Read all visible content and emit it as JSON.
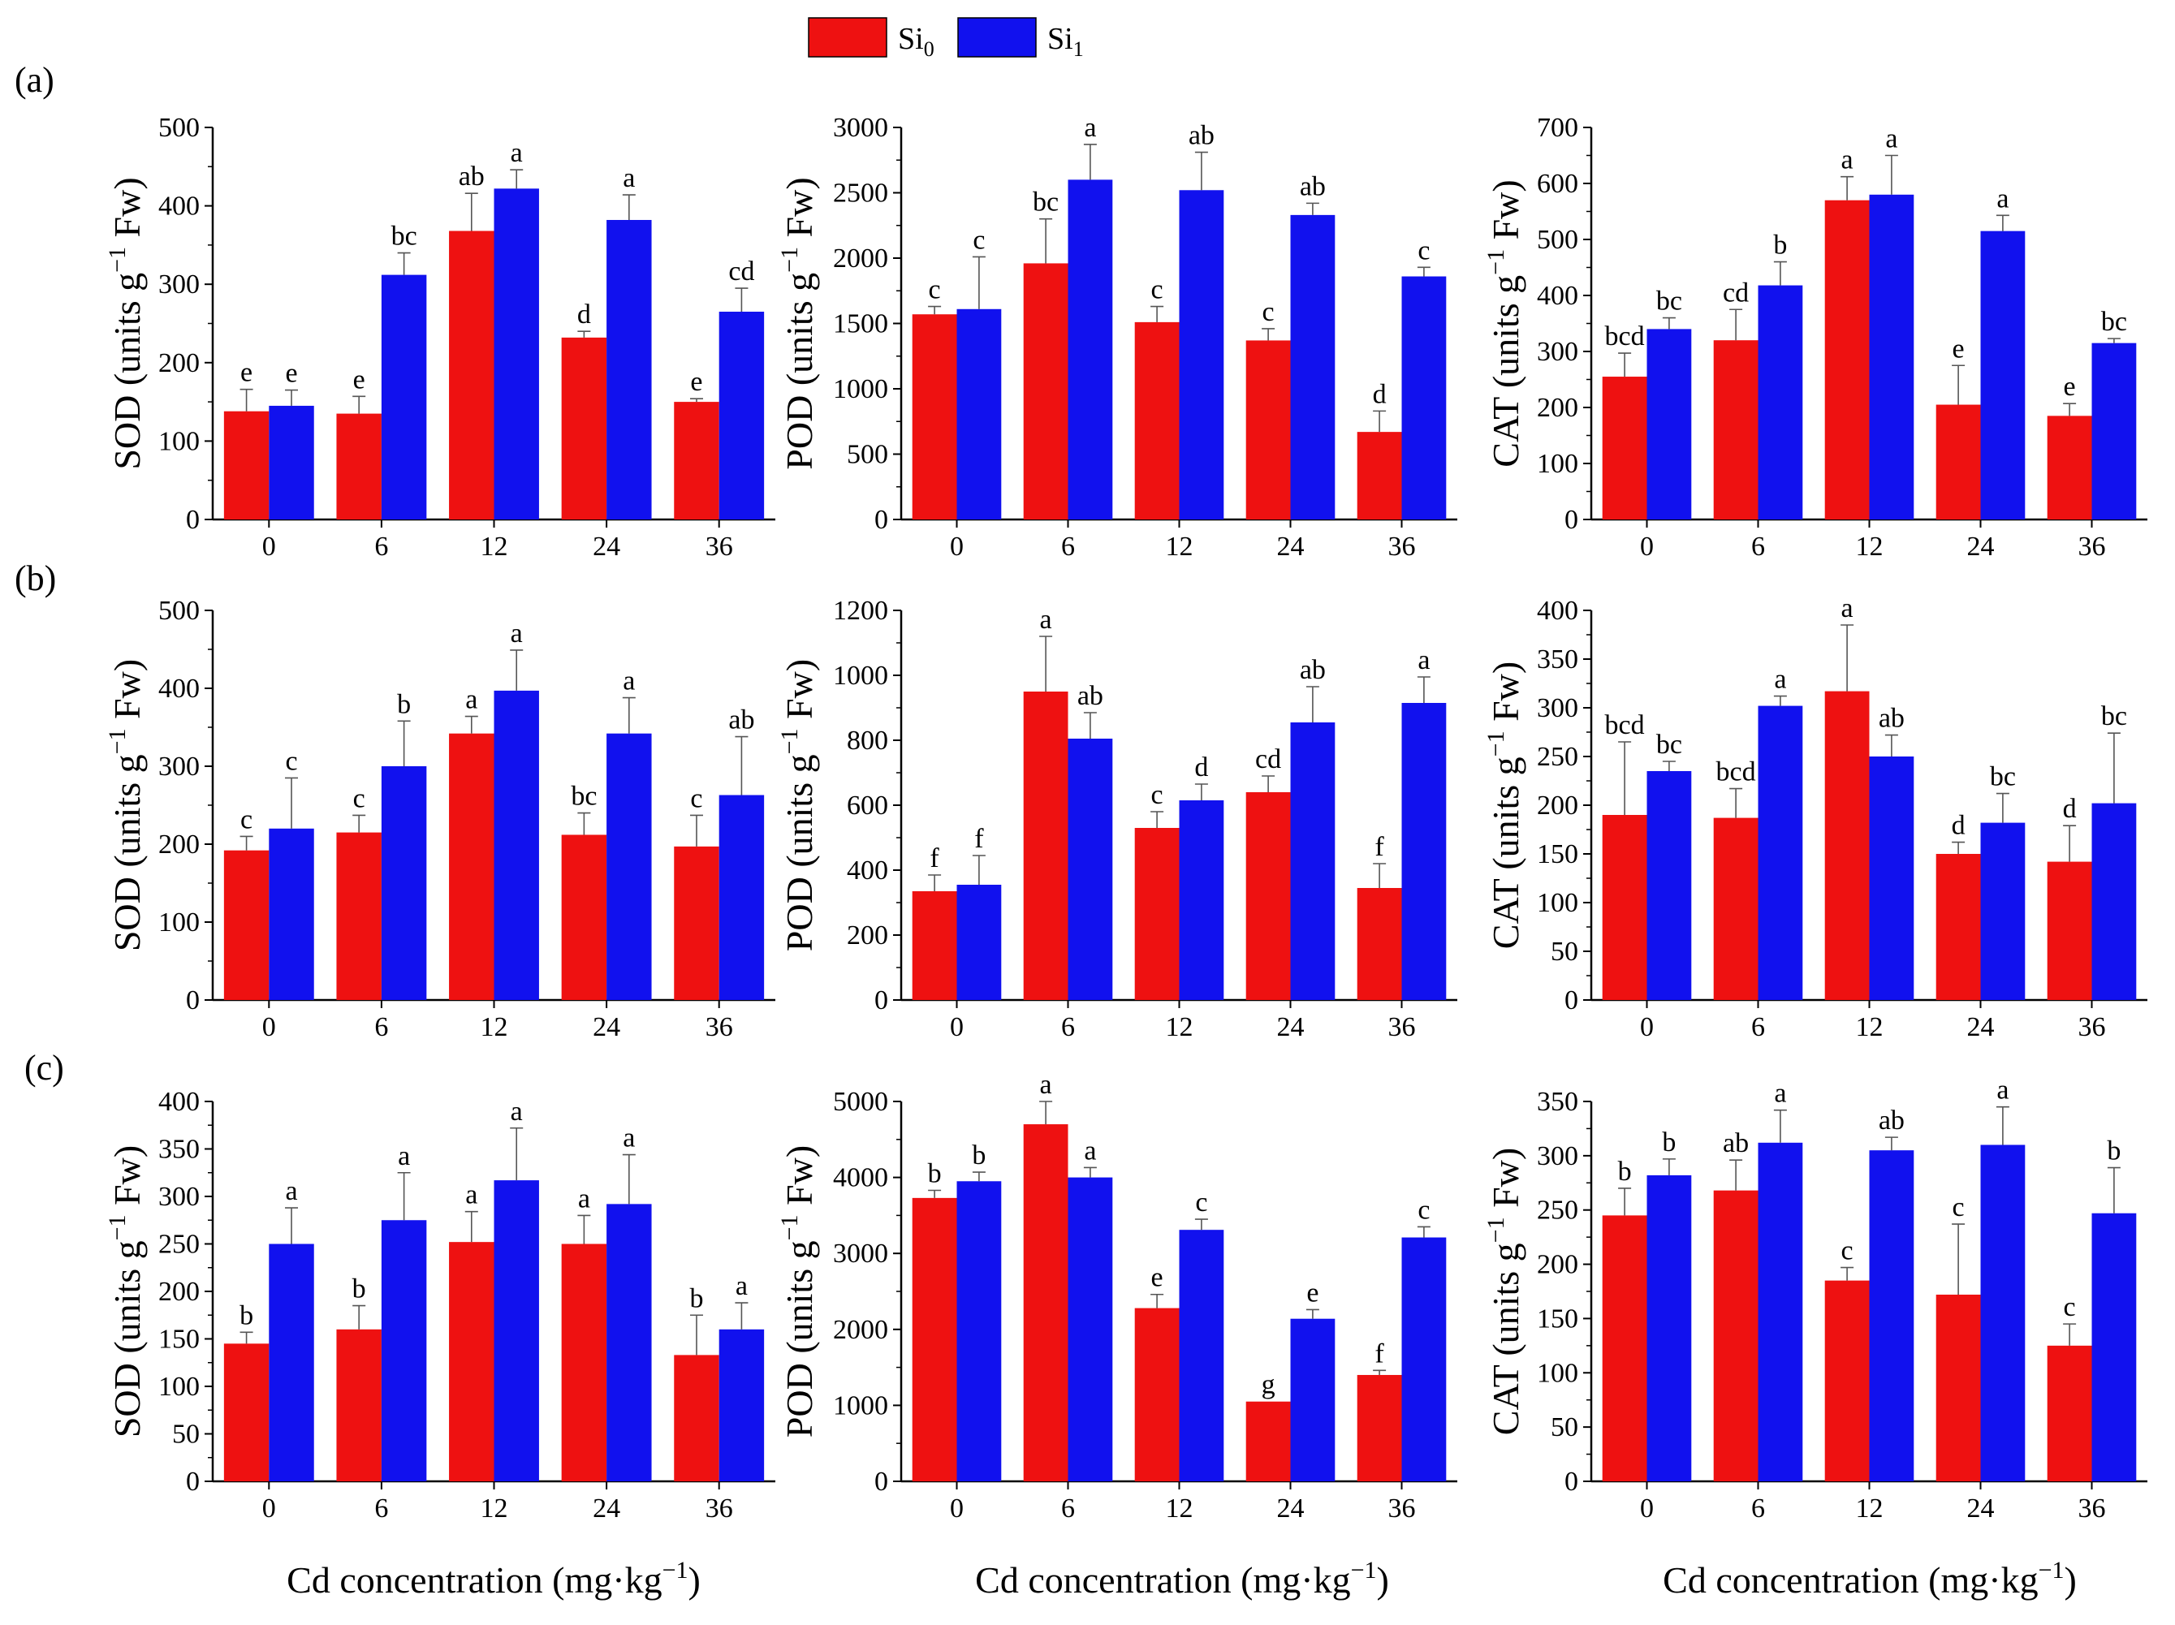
{
  "legend": {
    "items": [
      {
        "base": "Si",
        "sub": "0",
        "color": "#ee1111"
      },
      {
        "base": "Si",
        "sub": "1",
        "color": "#1111ee"
      }
    ]
  },
  "panel_labels": [
    "(a)",
    "(b)",
    "(c)"
  ],
  "x_axis_title": {
    "text": "Cd concentration (mg·kg",
    "sup": "−1",
    "close": ")"
  },
  "y_axis_title_parts": {
    "open": " (units g",
    "sup": "−1",
    "close": " Fw)"
  },
  "colors": {
    "si0": "#ee1111",
    "si1": "#1111ee",
    "axis": "#000000"
  },
  "chart_data": [
    {
      "type": "bar",
      "panel": "(a)",
      "ylabel": "SOD",
      "categories": [
        "0",
        "6",
        "12",
        "24",
        "36"
      ],
      "ylim": [
        0,
        500
      ],
      "yticks": [
        0,
        100,
        200,
        300,
        400,
        500
      ],
      "series": [
        {
          "name": "Si0",
          "values": [
            138,
            135,
            368,
            232,
            150
          ],
          "errors": [
            28,
            22,
            48,
            8,
            4
          ],
          "letters": [
            "e",
            "e",
            "ab",
            "d",
            "e"
          ]
        },
        {
          "name": "Si1",
          "values": [
            145,
            312,
            422,
            382,
            265
          ],
          "errors": [
            20,
            28,
            24,
            32,
            30
          ],
          "letters": [
            "e",
            "bc",
            "a",
            "a",
            "cd"
          ]
        }
      ]
    },
    {
      "type": "bar",
      "panel": "(a)",
      "ylabel": "POD",
      "categories": [
        "0",
        "6",
        "12",
        "24",
        "36"
      ],
      "ylim": [
        0,
        3000
      ],
      "yticks": [
        0,
        500,
        1000,
        1500,
        2000,
        2500,
        3000
      ],
      "series": [
        {
          "name": "Si0",
          "values": [
            1570,
            1960,
            1510,
            1370,
            670
          ],
          "errors": [
            60,
            340,
            120,
            90,
            160
          ],
          "letters": [
            "c",
            "bc",
            "c",
            "c",
            "d"
          ]
        },
        {
          "name": "Si1",
          "values": [
            1610,
            2600,
            2520,
            2330,
            1860
          ],
          "errors": [
            400,
            270,
            290,
            90,
            70
          ],
          "letters": [
            "c",
            "a",
            "ab",
            "ab",
            "c"
          ]
        }
      ]
    },
    {
      "type": "bar",
      "panel": "(a)",
      "ylabel": "CAT",
      "categories": [
        "0",
        "6",
        "12",
        "24",
        "36"
      ],
      "ylim": [
        0,
        700
      ],
      "yticks": [
        0,
        100,
        200,
        300,
        400,
        500,
        600,
        700
      ],
      "series": [
        {
          "name": "Si0",
          "values": [
            255,
            320,
            570,
            205,
            185
          ],
          "errors": [
            42,
            55,
            42,
            70,
            22
          ],
          "letters": [
            "bcd",
            "cd",
            "a",
            "e",
            "e"
          ]
        },
        {
          "name": "Si1",
          "values": [
            340,
            418,
            580,
            515,
            315
          ],
          "errors": [
            20,
            42,
            70,
            28,
            8
          ],
          "letters": [
            "bc",
            "b",
            "a",
            "a",
            "bc"
          ]
        }
      ]
    },
    {
      "type": "bar",
      "panel": "(b)",
      "ylabel": "SOD",
      "categories": [
        "0",
        "6",
        "12",
        "24",
        "36"
      ],
      "ylim": [
        0,
        500
      ],
      "yticks": [
        0,
        100,
        200,
        300,
        400,
        500
      ],
      "series": [
        {
          "name": "Si0",
          "values": [
            192,
            215,
            342,
            212,
            197
          ],
          "errors": [
            18,
            22,
            22,
            28,
            40
          ],
          "letters": [
            "c",
            "c",
            "a",
            "bc",
            "c"
          ]
        },
        {
          "name": "Si1",
          "values": [
            220,
            300,
            397,
            342,
            263
          ],
          "errors": [
            65,
            58,
            52,
            46,
            75
          ],
          "letters": [
            "c",
            "b",
            "a",
            "a",
            "ab"
          ]
        }
      ]
    },
    {
      "type": "bar",
      "panel": "(b)",
      "ylabel": "POD",
      "categories": [
        "0",
        "6",
        "12",
        "24",
        "36"
      ],
      "ylim": [
        0,
        1200
      ],
      "yticks": [
        0,
        200,
        400,
        600,
        800,
        1000,
        1200
      ],
      "series": [
        {
          "name": "Si0",
          "values": [
            335,
            950,
            530,
            640,
            345
          ],
          "errors": [
            50,
            170,
            50,
            50,
            75
          ],
          "letters": [
            "f",
            "a",
            "c",
            "cd",
            "f"
          ]
        },
        {
          "name": "Si1",
          "values": [
            355,
            805,
            615,
            855,
            915
          ],
          "errors": [
            90,
            80,
            50,
            110,
            80
          ],
          "letters": [
            "f",
            "ab",
            "d",
            "ab",
            "a"
          ]
        }
      ]
    },
    {
      "type": "bar",
      "panel": "(b)",
      "ylabel": "CAT",
      "categories": [
        "0",
        "6",
        "12",
        "24",
        "36"
      ],
      "ylim": [
        0,
        400
      ],
      "yticks": [
        0,
        50,
        100,
        150,
        200,
        250,
        300,
        350,
        400
      ],
      "series": [
        {
          "name": "Si0",
          "values": [
            190,
            187,
            317,
            150,
            142
          ],
          "errors": [
            75,
            30,
            68,
            12,
            37
          ],
          "letters": [
            "bcd",
            "bcd",
            "a",
            "d",
            "d"
          ]
        },
        {
          "name": "Si1",
          "values": [
            235,
            302,
            250,
            182,
            202
          ],
          "errors": [
            10,
            10,
            22,
            30,
            72
          ],
          "letters": [
            "bc",
            "a",
            "ab",
            "bc",
            "bc"
          ]
        }
      ]
    },
    {
      "type": "bar",
      "panel": "(c)",
      "ylabel": "SOD",
      "categories": [
        "0",
        "6",
        "12",
        "24",
        "36"
      ],
      "ylim": [
        0,
        400
      ],
      "yticks": [
        0,
        50,
        100,
        150,
        200,
        250,
        300,
        350,
        400
      ],
      "series": [
        {
          "name": "Si0",
          "values": [
            145,
            160,
            252,
            250,
            133
          ],
          "errors": [
            12,
            25,
            32,
            30,
            42
          ],
          "letters": [
            "b",
            "b",
            "a",
            "a",
            "b"
          ]
        },
        {
          "name": "Si1",
          "values": [
            250,
            275,
            317,
            292,
            160
          ],
          "errors": [
            38,
            50,
            55,
            52,
            28
          ],
          "letters": [
            "a",
            "a",
            "a",
            "a",
            "a"
          ]
        }
      ]
    },
    {
      "type": "bar",
      "panel": "(c)",
      "ylabel": "POD",
      "categories": [
        "0",
        "6",
        "12",
        "24",
        "36"
      ],
      "ylim": [
        0,
        5000
      ],
      "yticks": [
        0,
        1000,
        2000,
        3000,
        4000,
        5000
      ],
      "series": [
        {
          "name": "Si0",
          "values": [
            3730,
            4700,
            2280,
            1050,
            1400
          ],
          "errors": [
            100,
            300,
            180,
            0,
            60
          ],
          "letters": [
            "b",
            "a",
            "e",
            "g",
            "f"
          ]
        },
        {
          "name": "Si1",
          "values": [
            3950,
            4000,
            3310,
            2140,
            3210
          ],
          "errors": [
            120,
            130,
            140,
            120,
            140
          ],
          "letters": [
            "b",
            "a",
            "c",
            "e",
            "c"
          ]
        }
      ]
    },
    {
      "type": "bar",
      "panel": "(c)",
      "ylabel": "CAT",
      "categories": [
        "0",
        "6",
        "12",
        "24",
        "36"
      ],
      "ylim": [
        0,
        350
      ],
      "yticks": [
        0,
        50,
        100,
        150,
        200,
        250,
        300,
        350
      ],
      "series": [
        {
          "name": "Si0",
          "values": [
            245,
            268,
            185,
            172,
            125
          ],
          "errors": [
            25,
            28,
            12,
            65,
            20
          ],
          "letters": [
            "b",
            "ab",
            "c",
            "c",
            "c"
          ]
        },
        {
          "name": "Si1",
          "values": [
            282,
            312,
            305,
            310,
            247
          ],
          "errors": [
            15,
            30,
            12,
            35,
            42
          ],
          "letters": [
            "b",
            "a",
            "ab",
            "a",
            "b"
          ]
        }
      ]
    }
  ]
}
